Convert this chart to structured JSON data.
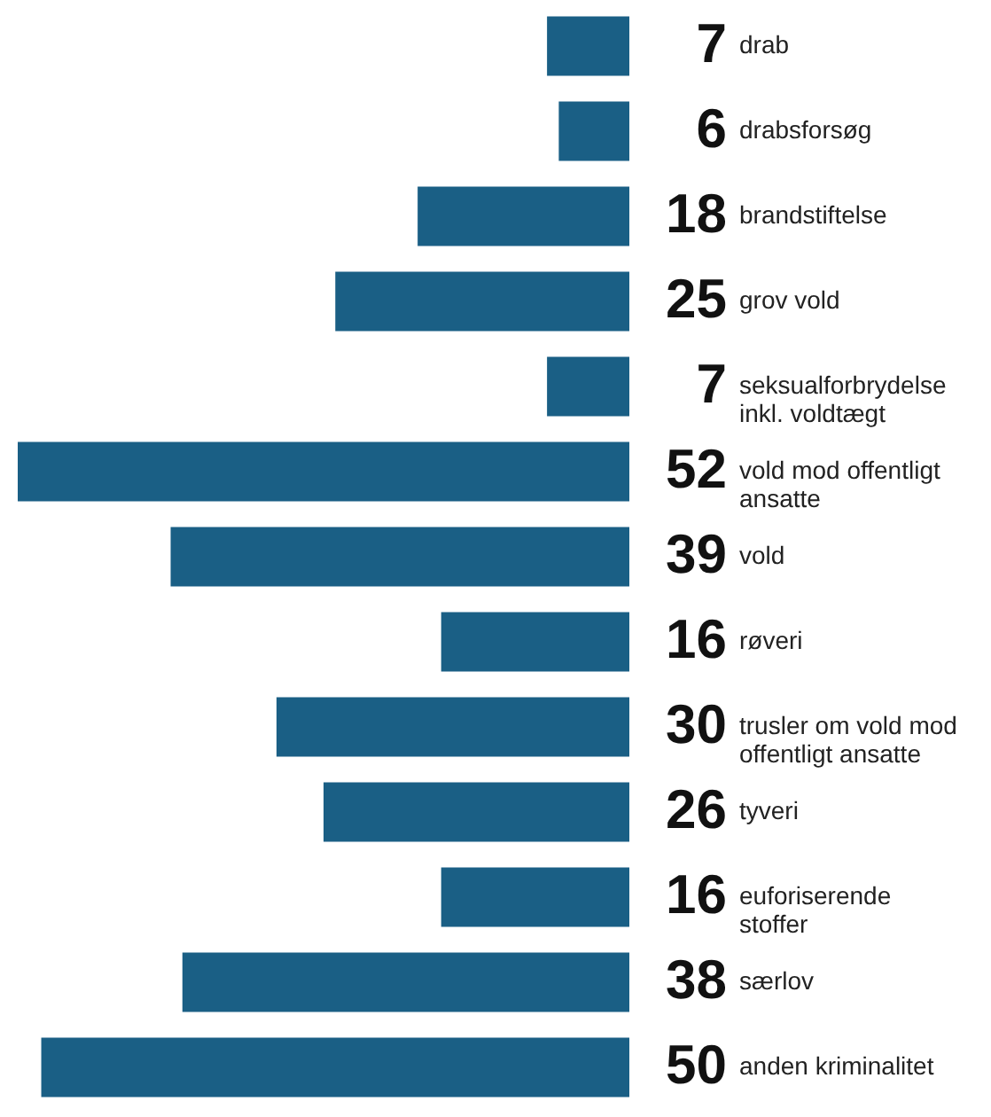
{
  "chart_data": {
    "type": "bar",
    "orientation": "horizontal",
    "data_labels": true,
    "categories": [
      "drab",
      "drabsforsøg",
      "brandstiftelse",
      "grov vold",
      "seksualforbrydelse inkl. voldtægt",
      "vold mod offentligt ansatte",
      "vold",
      "røveri",
      "trusler om vold mod offentligt ansatte",
      "tyveri",
      "euforiserende stoffer",
      "særlov",
      "anden kriminalitet"
    ],
    "values": [
      7,
      6,
      18,
      25,
      7,
      52,
      39,
      16,
      30,
      26,
      16,
      38,
      50
    ],
    "color": "#1a5f85"
  }
}
